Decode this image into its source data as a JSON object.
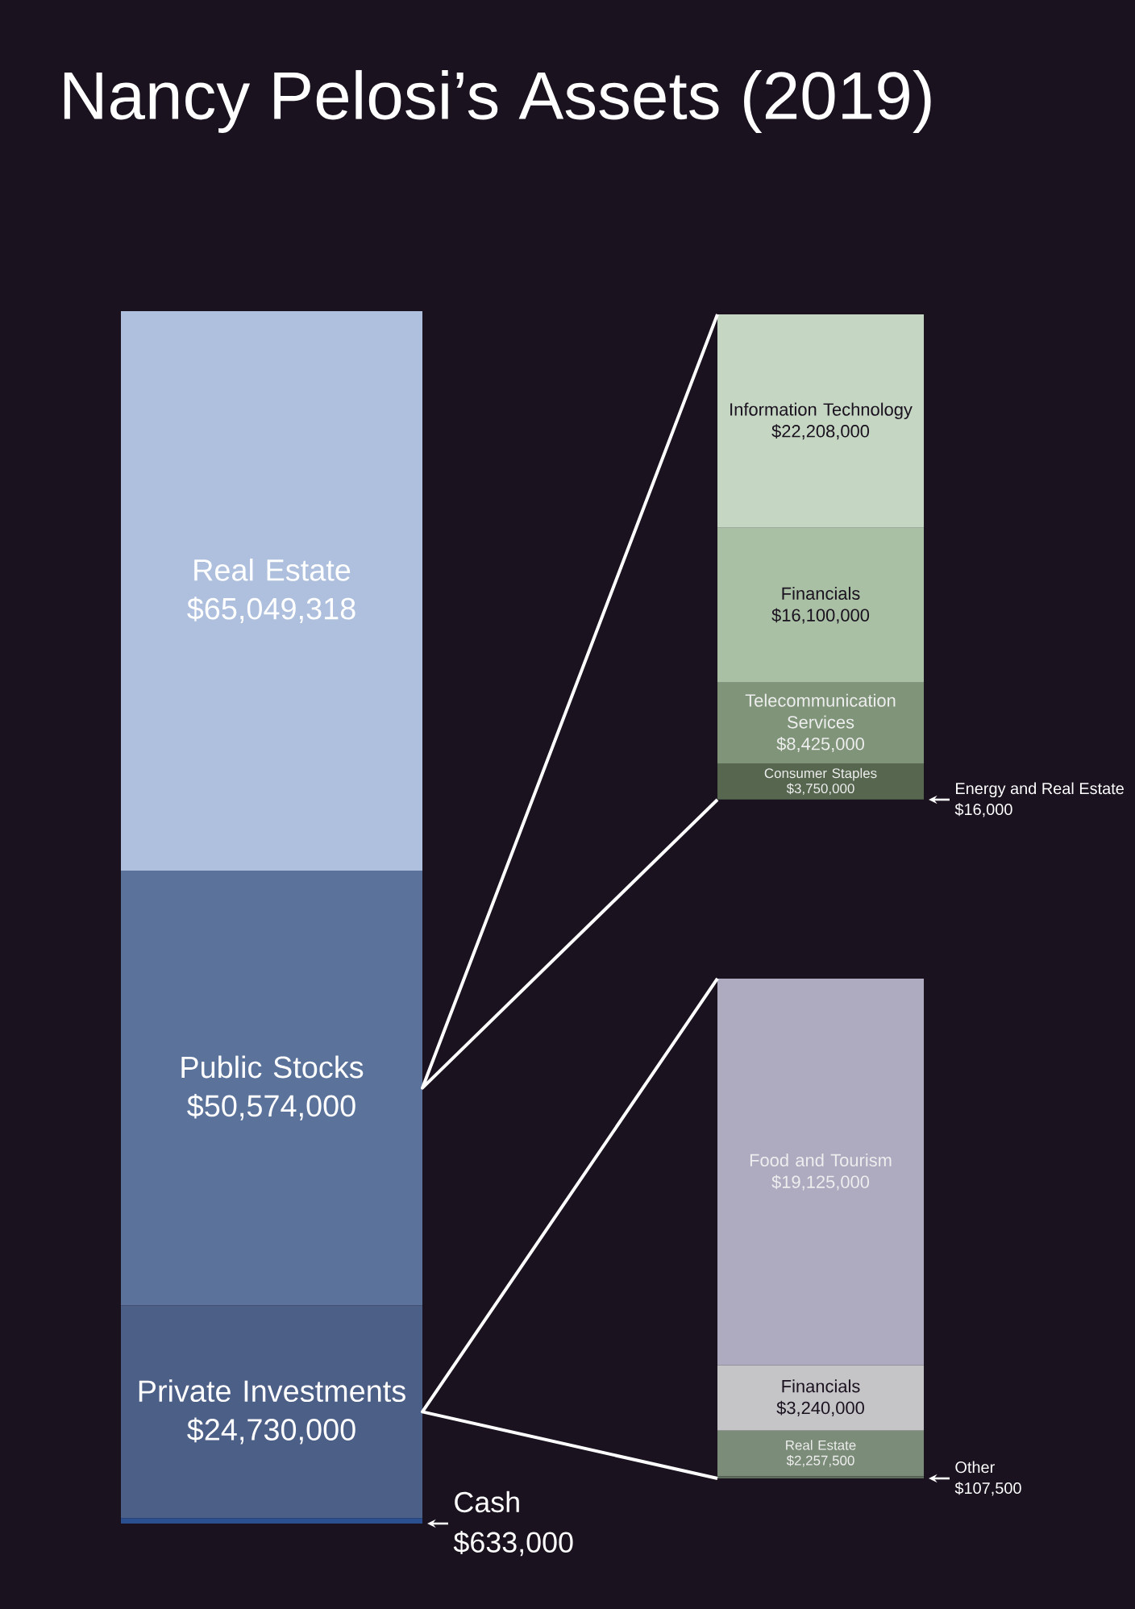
{
  "chart_data": [
    {
      "type": "bar",
      "title": "Nancy Pelosi’s Assets (2019)",
      "stacked": true,
      "categories": [
        null
      ],
      "series": [
        {
          "name": "Cash",
          "color": "#2b4f8f",
          "values": [
            633000
          ],
          "value_labels": [
            "$633,000"
          ]
        },
        {
          "name": "Private Investments",
          "color": "#4c5f86",
          "values": [
            24730000
          ],
          "value_labels": [
            "$24,730,000"
          ]
        },
        {
          "name": "Public Stocks",
          "color": "#5b729b",
          "values": [
            50574000
          ],
          "value_labels": [
            "$50,574,000"
          ]
        },
        {
          "name": "Real Estate",
          "color": "#aec0de",
          "values": [
            65049318
          ],
          "value_labels": [
            "$65,049,318"
          ]
        }
      ]
    },
    {
      "type": "bar",
      "stacked": true,
      "categories": [
        null
      ],
      "series": [
        {
          "name": "Energy and Real Estate",
          "color": "#4a5846",
          "values": [
            16000
          ],
          "value_labels": [
            "$16,000"
          ]
        },
        {
          "name": "Consumer Staples",
          "color": "#56664f",
          "values": [
            3750000
          ],
          "value_labels": [
            "$3,750,000"
          ]
        },
        {
          "name": "Telecommunication Services",
          "color": "#7f9479",
          "values": [
            8425000
          ],
          "value_labels": [
            "$8,425,000"
          ]
        },
        {
          "name": "Financials",
          "color": "#a9c0a4",
          "values": [
            16100000
          ],
          "value_labels": [
            "$16,100,000"
          ]
        },
        {
          "name": "Information Technology",
          "color": "#c5d6c2",
          "values": [
            22208000
          ],
          "value_labels": [
            "$22,208,000"
          ]
        }
      ]
    },
    {
      "type": "bar",
      "stacked": true,
      "categories": [
        null
      ],
      "series": [
        {
          "name": "Other",
          "color": "#5f6e5c",
          "values": [
            107500
          ],
          "value_labels": [
            "$107,500"
          ]
        },
        {
          "name": "Real Estate",
          "color": "#7b8c78",
          "values": [
            2257500
          ],
          "value_labels": [
            "$2,257,500"
          ]
        },
        {
          "name": "Financials",
          "color": "#c5c5c7",
          "values": [
            3240000
          ],
          "value_labels": [
            "$3,240,000"
          ]
        },
        {
          "name": "Food and Tourism",
          "color": "#aeaac0",
          "values": [
            19125000
          ],
          "value_labels": [
            "$19,125,000"
          ]
        }
      ]
    }
  ]
}
